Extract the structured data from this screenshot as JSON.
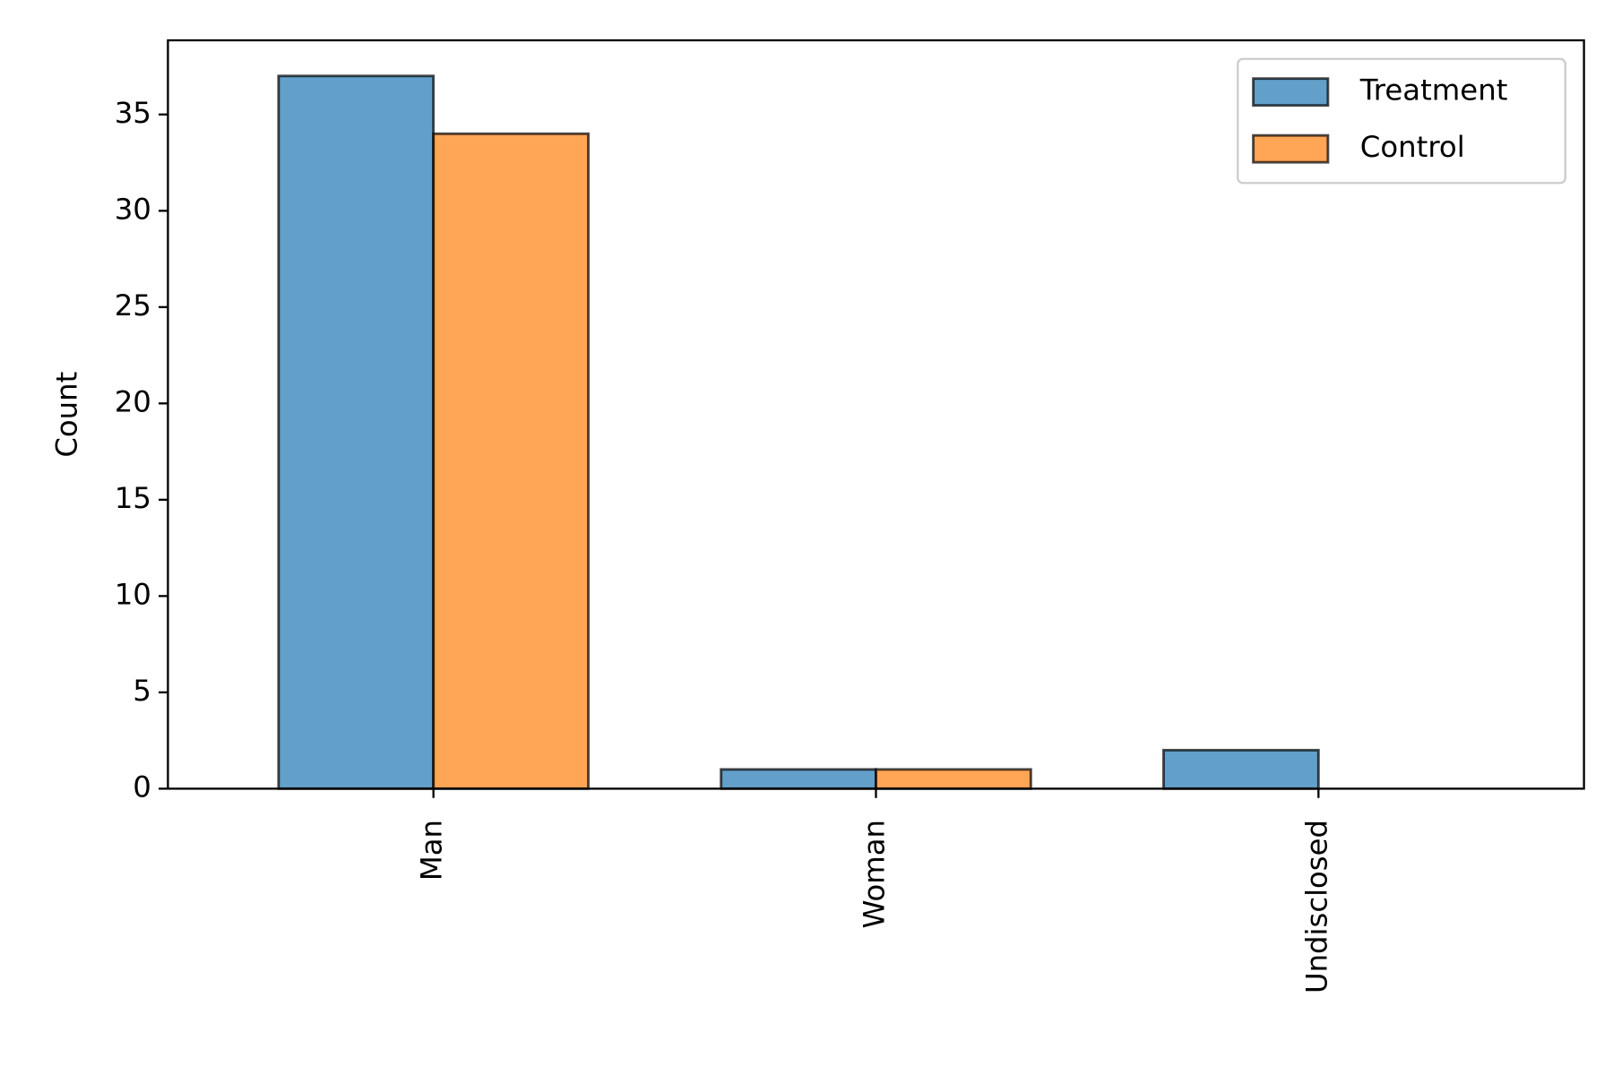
{
  "chart_data": {
    "type": "bar",
    "y_label": "Count",
    "categories": [
      "Man",
      "Woman",
      "Undisclosed"
    ],
    "series": [
      {
        "name": "Treatment",
        "color": "#1f77b4",
        "values": [
          37,
          1,
          2
        ]
      },
      {
        "name": "Control",
        "color": "#ff7f0e",
        "values": [
          34,
          1,
          0
        ]
      }
    ],
    "ylim": [
      0,
      38.85
    ],
    "yticks": [
      0,
      5,
      10,
      15,
      20,
      25,
      30,
      35
    ],
    "grid": false,
    "legend": "upper right"
  }
}
